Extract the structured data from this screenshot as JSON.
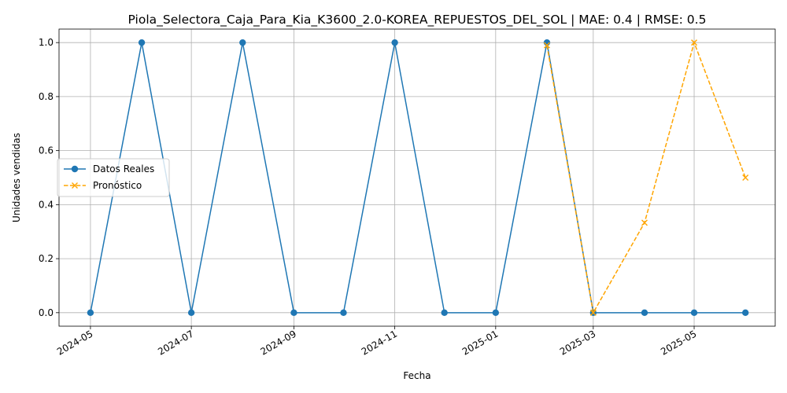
{
  "chart_data": {
    "type": "line",
    "title": "Piola_Selectora_Caja_Para_Kia_K3600_2.0-KOREA_REPUESTOS_DEL_SOL | MAE: 0.4 | RMSE: 0.5",
    "xlabel": "Fecha",
    "ylabel": "Unidades vendidas",
    "xlim": [
      "2024-04-12",
      "2025-06-19"
    ],
    "ylim": [
      -0.05,
      1.05
    ],
    "x_ticks": [
      "2024-05",
      "2024-07",
      "2024-09",
      "2024-11",
      "2025-01",
      "2025-03",
      "2025-05"
    ],
    "x_tick_dates": [
      "2024-05-01",
      "2024-07-01",
      "2024-09-01",
      "2024-11-01",
      "2025-01-01",
      "2025-03-01",
      "2025-05-01"
    ],
    "y_ticks": [
      "0.0",
      "0.2",
      "0.4",
      "0.6",
      "0.8",
      "1.0"
    ],
    "y_tick_values": [
      0.0,
      0.2,
      0.4,
      0.6,
      0.8,
      1.0
    ],
    "grid": true,
    "legend_position": "center-left",
    "series": [
      {
        "name": "Datos Reales",
        "color": "#1f77b4",
        "style": "solid",
        "marker": "circle",
        "x": [
          "2024-05-01",
          "2024-06-01",
          "2024-07-01",
          "2024-08-01",
          "2024-09-01",
          "2024-10-01",
          "2024-11-01",
          "2024-12-01",
          "2025-01-01",
          "2025-02-01",
          "2025-03-01",
          "2025-04-01",
          "2025-05-01",
          "2025-06-01"
        ],
        "values": [
          0,
          1,
          0,
          1,
          0,
          0,
          1,
          0,
          0,
          1,
          0,
          0,
          0,
          0
        ]
      },
      {
        "name": "Pronóstico",
        "color": "#ffa500",
        "style": "dashed",
        "marker": "x",
        "x": [
          "2025-02-01",
          "2025-03-01",
          "2025-04-01",
          "2025-05-01",
          "2025-06-01"
        ],
        "values": [
          0.99,
          0.0,
          0.333,
          1.0,
          0.5
        ]
      }
    ]
  }
}
